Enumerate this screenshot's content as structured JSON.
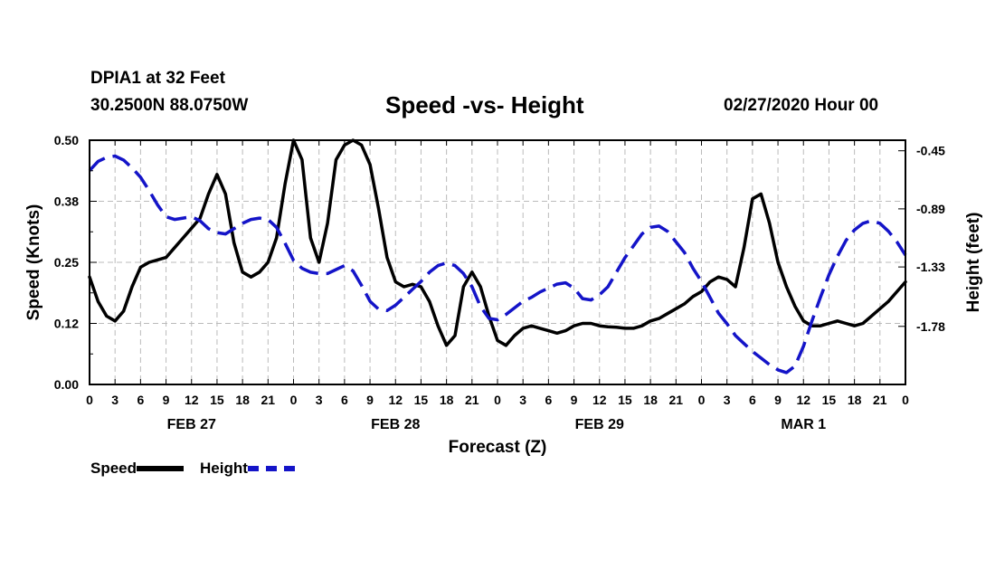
{
  "header": {
    "station": "DPIA1 at 32 Feet",
    "coords": "30.2500N 88.0750W",
    "title": "Speed -vs- Height",
    "date": "02/27/2020 Hour 00"
  },
  "colors": {
    "speed": "#000000",
    "height": "#1414c8",
    "grid": "#bbbbbb"
  },
  "chart_data": {
    "type": "line",
    "title": "Speed -vs- Height",
    "xlabel": "Forecast (Z)",
    "ylabel_left": "Speed (Knots)",
    "ylabel_right": "Height (feet)",
    "x_range_hours": [
      0,
      96
    ],
    "left_ylim": [
      0.0,
      0.5
    ],
    "right_ylim": [
      -2.22,
      -0.37
    ],
    "left_ticks": [
      "0.00",
      "0.12",
      "0.25",
      "0.38",
      "0.50"
    ],
    "left_tick_values": [
      0.0,
      0.125,
      0.25,
      0.375,
      0.5
    ],
    "right_ticks": [
      "-0.45",
      "-0.89",
      "-1.33",
      "-1.78"
    ],
    "right_tick_values": [
      -0.45,
      -0.89,
      -1.33,
      -1.78
    ],
    "x_tick_labels": [
      "0",
      "3",
      "6",
      "9",
      "12",
      "15",
      "18",
      "21",
      "0",
      "3",
      "6",
      "9",
      "12",
      "15",
      "18",
      "21",
      "0",
      "3",
      "6",
      "9",
      "12",
      "15",
      "18",
      "21",
      "0",
      "3",
      "6",
      "9",
      "12",
      "15",
      "18",
      "21",
      "0"
    ],
    "x_tick_hours": [
      0,
      3,
      6,
      9,
      12,
      15,
      18,
      21,
      24,
      27,
      30,
      33,
      36,
      39,
      42,
      45,
      48,
      51,
      54,
      57,
      60,
      63,
      66,
      69,
      72,
      75,
      78,
      81,
      84,
      87,
      90,
      93,
      96
    ],
    "day_labels": [
      "FEB 27",
      "FEB 28",
      "FEB 29",
      "MAR 1"
    ],
    "day_label_hours": [
      12,
      36,
      60,
      84
    ],
    "grid": true,
    "legend": "bottom-left",
    "series": [
      {
        "name": "Speed",
        "style": "solid",
        "axis": "left",
        "x": [
          0,
          1,
          2,
          3,
          4,
          5,
          6,
          7,
          8,
          9,
          10,
          11,
          12,
          13,
          14,
          15,
          16,
          17,
          18,
          19,
          20,
          21,
          22,
          23,
          24,
          25,
          26,
          27,
          28,
          29,
          30,
          31,
          32,
          33,
          34,
          35,
          36,
          37,
          38,
          39,
          40,
          41,
          42,
          43,
          44,
          45,
          46,
          47,
          48,
          49,
          50,
          51,
          52,
          53,
          54,
          55,
          56,
          57,
          58,
          59,
          60,
          61,
          62,
          63,
          64,
          65,
          66,
          67,
          68,
          69,
          70,
          71,
          72,
          73,
          74,
          75,
          76,
          77,
          78,
          79,
          80,
          81,
          82,
          83,
          84,
          85,
          86,
          87,
          88,
          89,
          90,
          91,
          92,
          93,
          94,
          95,
          96
        ],
        "y": [
          0.22,
          0.17,
          0.14,
          0.13,
          0.15,
          0.2,
          0.24,
          0.25,
          0.255,
          0.26,
          0.28,
          0.3,
          0.32,
          0.34,
          0.39,
          0.43,
          0.39,
          0.29,
          0.23,
          0.22,
          0.23,
          0.25,
          0.3,
          0.41,
          0.5,
          0.46,
          0.3,
          0.25,
          0.33,
          0.46,
          0.49,
          0.5,
          0.49,
          0.45,
          0.36,
          0.26,
          0.21,
          0.2,
          0.205,
          0.2,
          0.17,
          0.12,
          0.08,
          0.1,
          0.2,
          0.23,
          0.2,
          0.14,
          0.09,
          0.08,
          0.1,
          0.115,
          0.12,
          0.115,
          0.11,
          0.105,
          0.11,
          0.12,
          0.125,
          0.125,
          0.12,
          0.118,
          0.117,
          0.115,
          0.115,
          0.12,
          0.13,
          0.135,
          0.145,
          0.155,
          0.165,
          0.18,
          0.19,
          0.21,
          0.22,
          0.215,
          0.2,
          0.28,
          0.38,
          0.39,
          0.33,
          0.25,
          0.2,
          0.16,
          0.13,
          0.12,
          0.12,
          0.125,
          0.13,
          0.125,
          0.12,
          0.125,
          0.14,
          0.155,
          0.17,
          0.19,
          0.21
        ]
      },
      {
        "name": "Height",
        "style": "dashed",
        "axis": "right",
        "x": [
          0,
          1,
          2,
          3,
          4,
          5,
          6,
          7,
          8,
          9,
          10,
          11,
          12,
          13,
          14,
          15,
          16,
          17,
          18,
          19,
          20,
          21,
          22,
          23,
          24,
          25,
          26,
          27,
          28,
          29,
          30,
          31,
          32,
          33,
          34,
          35,
          36,
          37,
          38,
          39,
          40,
          41,
          42,
          43,
          44,
          45,
          46,
          47,
          48,
          49,
          50,
          51,
          52,
          53,
          54,
          55,
          56,
          57,
          58,
          59,
          60,
          61,
          62,
          63,
          64,
          65,
          66,
          67,
          68,
          69,
          70,
          71,
          72,
          73,
          74,
          75,
          76,
          77,
          78,
          79,
          80,
          81,
          82,
          83,
          84,
          85,
          86,
          87,
          88,
          89,
          90,
          91,
          92,
          93,
          94,
          95,
          96
        ],
        "y": [
          -0.6,
          -0.53,
          -0.5,
          -0.49,
          -0.52,
          -0.58,
          -0.65,
          -0.75,
          -0.86,
          -0.95,
          -0.97,
          -0.96,
          -0.95,
          -0.98,
          -1.04,
          -1.07,
          -1.08,
          -1.04,
          -1.0,
          -0.97,
          -0.96,
          -0.97,
          -1.03,
          -1.15,
          -1.28,
          -1.34,
          -1.37,
          -1.38,
          -1.38,
          -1.35,
          -1.32,
          -1.36,
          -1.47,
          -1.59,
          -1.65,
          -1.66,
          -1.62,
          -1.56,
          -1.5,
          -1.44,
          -1.37,
          -1.32,
          -1.3,
          -1.32,
          -1.38,
          -1.48,
          -1.63,
          -1.72,
          -1.73,
          -1.69,
          -1.64,
          -1.59,
          -1.56,
          -1.52,
          -1.49,
          -1.46,
          -1.45,
          -1.49,
          -1.57,
          -1.58,
          -1.54,
          -1.48,
          -1.37,
          -1.26,
          -1.17,
          -1.08,
          -1.03,
          -1.02,
          -1.06,
          -1.14,
          -1.22,
          -1.34,
          -1.44,
          -1.56,
          -1.68,
          -1.76,
          -1.85,
          -1.91,
          -1.97,
          -2.02,
          -2.07,
          -2.11,
          -2.13,
          -2.08,
          -1.93,
          -1.74,
          -1.56,
          -1.39,
          -1.25,
          -1.13,
          -1.05,
          -1.0,
          -0.98,
          -1.0,
          -1.06,
          -1.14,
          -1.24
        ]
      }
    ]
  },
  "legend": {
    "speed_label": "Speed",
    "height_label": "Height"
  }
}
